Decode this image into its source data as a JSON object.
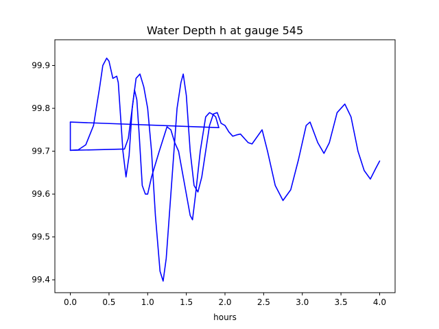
{
  "chart_data": {
    "type": "line",
    "title": "Water Depth h at gauge 545",
    "xlabel": "hours",
    "ylabel": "",
    "xlim": [
      -0.2,
      4.2
    ],
    "ylim": [
      99.37,
      99.96
    ],
    "x_ticks": [
      0.0,
      0.5,
      1.0,
      1.5,
      2.0,
      2.5,
      3.0,
      3.5,
      4.0
    ],
    "x_tick_labels": [
      "0.0",
      "0.5",
      "1.0",
      "1.5",
      "2.0",
      "2.5",
      "3.0",
      "3.5",
      "4.0"
    ],
    "y_ticks": [
      99.4,
      99.5,
      99.6,
      99.7,
      99.8,
      99.9
    ],
    "y_tick_labels": [
      "99.4",
      "99.5",
      "99.6",
      "99.7",
      "99.8",
      "99.9"
    ],
    "grid": false,
    "series": [
      {
        "color": "#0000ff",
        "points": [
          [
            0.0,
            99.768
          ],
          [
            0.0,
            99.702
          ],
          [
            0.1,
            99.703
          ],
          [
            0.2,
            99.715
          ],
          [
            0.3,
            99.76
          ],
          [
            0.38,
            99.85
          ],
          [
            0.42,
            99.9
          ],
          [
            0.47,
            99.917
          ],
          [
            0.5,
            99.91
          ],
          [
            0.55,
            99.87
          ],
          [
            0.6,
            99.875
          ],
          [
            0.62,
            99.86
          ],
          [
            0.65,
            99.78
          ],
          [
            0.68,
            99.7
          ],
          [
            0.72,
            99.64
          ],
          [
            0.76,
            99.69
          ],
          [
            0.8,
            99.8
          ],
          [
            0.83,
            99.843
          ],
          [
            0.86,
            99.82
          ],
          [
            0.89,
            99.74
          ],
          [
            0.93,
            99.62
          ],
          [
            0.97,
            99.6
          ],
          [
            1.0,
            99.6
          ],
          [
            1.05,
            99.64
          ],
          [
            1.15,
            99.7
          ],
          [
            1.25,
            99.757
          ],
          [
            1.3,
            99.75
          ],
          [
            1.35,
            99.72
          ],
          [
            1.4,
            99.7
          ],
          [
            1.45,
            99.65
          ],
          [
            1.5,
            99.6
          ],
          [
            1.55,
            99.55
          ],
          [
            1.58,
            99.54
          ],
          [
            1.62,
            99.6
          ],
          [
            1.68,
            99.7
          ],
          [
            1.75,
            99.78
          ],
          [
            1.8,
            99.79
          ],
          [
            1.85,
            99.785
          ],
          [
            1.88,
            99.78
          ],
          [
            1.92,
            99.755
          ]
        ]
      },
      {
        "color": "#0000ff",
        "points": [
          [
            1.92,
            99.755
          ],
          [
            0.0,
            99.768
          ]
        ]
      },
      {
        "color": "#0000ff",
        "points": [
          [
            0.0,
            99.702
          ],
          [
            0.7,
            99.705
          ],
          [
            0.75,
            99.73
          ],
          [
            0.8,
            99.8
          ],
          [
            0.85,
            99.87
          ],
          [
            0.9,
            99.88
          ],
          [
            0.95,
            99.85
          ],
          [
            1.0,
            99.8
          ],
          [
            1.05,
            99.7
          ],
          [
            1.1,
            99.55
          ],
          [
            1.16,
            99.42
          ],
          [
            1.2,
            99.397
          ],
          [
            1.24,
            99.45
          ],
          [
            1.3,
            99.6
          ],
          [
            1.38,
            99.8
          ],
          [
            1.43,
            99.86
          ],
          [
            1.46,
            99.88
          ],
          [
            1.5,
            99.83
          ],
          [
            1.55,
            99.7
          ],
          [
            1.6,
            99.62
          ],
          [
            1.65,
            99.605
          ],
          [
            1.7,
            99.64
          ],
          [
            1.75,
            99.7
          ],
          [
            1.8,
            99.76
          ],
          [
            1.85,
            99.787
          ],
          [
            1.9,
            99.79
          ],
          [
            1.95,
            99.765
          ],
          [
            2.0,
            99.76
          ],
          [
            2.05,
            99.745
          ],
          [
            2.1,
            99.735
          ],
          [
            2.15,
            99.738
          ],
          [
            2.2,
            99.74
          ],
          [
            2.3,
            99.72
          ],
          [
            2.35,
            99.717
          ],
          [
            2.48,
            99.75
          ],
          [
            2.55,
            99.7
          ],
          [
            2.65,
            99.62
          ],
          [
            2.75,
            99.585
          ],
          [
            2.85,
            99.61
          ],
          [
            2.95,
            99.68
          ],
          [
            3.05,
            99.76
          ],
          [
            3.1,
            99.768
          ],
          [
            3.2,
            99.72
          ],
          [
            3.28,
            99.695
          ],
          [
            3.35,
            99.72
          ],
          [
            3.45,
            99.79
          ],
          [
            3.55,
            99.81
          ],
          [
            3.63,
            99.78
          ],
          [
            3.72,
            99.7
          ],
          [
            3.8,
            99.655
          ],
          [
            3.88,
            99.635
          ],
          [
            3.95,
            99.66
          ],
          [
            4.0,
            99.677
          ]
        ]
      }
    ]
  }
}
